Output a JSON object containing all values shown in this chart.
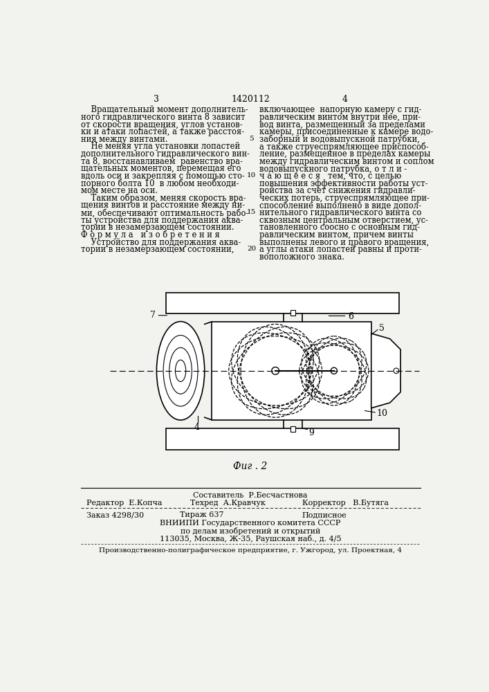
{
  "bg_color": "#f2f2ee",
  "page_number_left": "3",
  "page_number_center": "1420112",
  "page_number_right": "4",
  "left_col_lines": [
    "    Вращательный момент дополнитель-",
    "ного гидравлического винта 8 зависит",
    "от скорости вращения, углов установ-",
    "ки и атаки лопастей, а также расстоя-",
    "ния между винтами.",
    "    Не меняя угла установки лопастей",
    "дополнительного гидравлического вин-",
    "та 8, восстанавливаем  равенство вра-",
    "щательных моментов, перемещая его",
    "вдоль оси и закрепляя с помощью сто-",
    "порного болта 10  в любом необходи-",
    "мом месте на оси.",
    "    Таким образом, меняя скорость вра-",
    "щения винтов и расстояние между ни-",
    "ми, обеспечивают оптимальность рабо-",
    "ты устройства для поддержания аква-",
    "тории в незамерзающем состоянии.",
    "Ф о р м у л а   и з о б р е т е н и я",
    "    Устройство для поддержания аква-",
    "тории в незамерзающем состоянии,"
  ],
  "right_col_lines": [
    "включающее  напорную камеру с гид-",
    "равлическим винтом внутри нее, при-",
    "вод винта, размещенный за пределами",
    "камеры, присоединенные к камере водо-",
    "заборный и водовыпускной патрубки,",
    "а также струеспрямляющее приспособ-",
    "ление, размещенное в пределах камеры",
    "между гидравлическим винтом и соплом",
    "водовыпускного патрубка, о т л и -",
    "ч а ю щ е е с я   тем, что, с целью",
    "повышения эффективности работы уст-",
    "ройства за счет снижения гидравли-",
    "ческих потерь, струеспрямляющее при-",
    "способление выполнено в виде допол-",
    "нительного гидравлического винта со",
    "сквозным центральным отверстием, ус-",
    "тановленного соосно с основным гид-",
    "равлическим винтом, причем винты",
    "выполнены левого и правого вращения,",
    "а углы атаки лопастей равны и проти-",
    "воположного знака."
  ],
  "fig_caption": "Фиг . 2",
  "footer_sostavitel": "Составитель  Р.Бесчастнова",
  "footer_redaktor": "Редактор  Е.Копча",
  "footer_tehred": "Техред  А.Кравчук",
  "footer_korrektor": "Корректор   В.Бутяга",
  "footer_zakaz": "Заказ 4298/30",
  "footer_tirazh": "Тираж 637",
  "footer_podpisnoe": "Подписное",
  "footer_vniipii": "ВНИИПИ Государственного комитета СССР",
  "footer_dela": "по делам изобретений и открытий",
  "footer_address": "113035, Москва, Ж-35, Раушская наб., д. 4/5",
  "footer_uzhorod": "Производственно-полиграфическое предприятие, г. Ужгород, ул. Проектная, 4"
}
